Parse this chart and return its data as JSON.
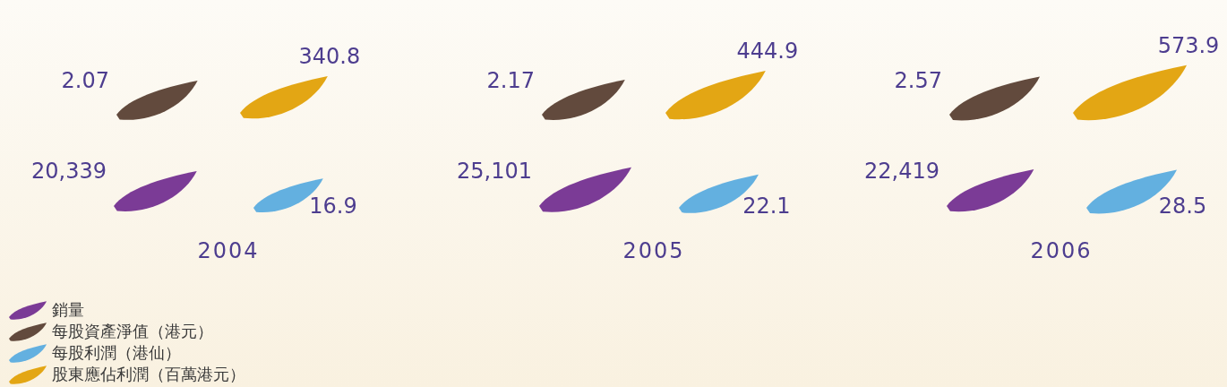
{
  "chart_data": {
    "type": "other",
    "categories": [
      "2004",
      "2005",
      "2006"
    ],
    "series": [
      {
        "name": "銷量",
        "color": "#7b3b96",
        "values": [
          20339,
          25101,
          22419
        ],
        "value_labels": [
          "20,339",
          "25,101",
          "22,419"
        ]
      },
      {
        "name": "每股資產淨值（港元）",
        "color": "#624a3d",
        "values": [
          2.07,
          2.17,
          2.57
        ],
        "value_labels": [
          "2.07",
          "2.17",
          "2.57"
        ]
      },
      {
        "name": "每股利潤（港仙）",
        "color": "#63b0e0",
        "values": [
          16.9,
          22.1,
          28.5
        ],
        "value_labels": [
          "16.9",
          "22.1",
          "28.5"
        ]
      },
      {
        "name": "股東應佔利潤（百萬港元）",
        "color": "#e3a614",
        "values": [
          340.8,
          444.9,
          573.9
        ],
        "value_labels": [
          "340.8",
          "444.9",
          "573.9"
        ]
      }
    ],
    "legend": "bottom left"
  }
}
